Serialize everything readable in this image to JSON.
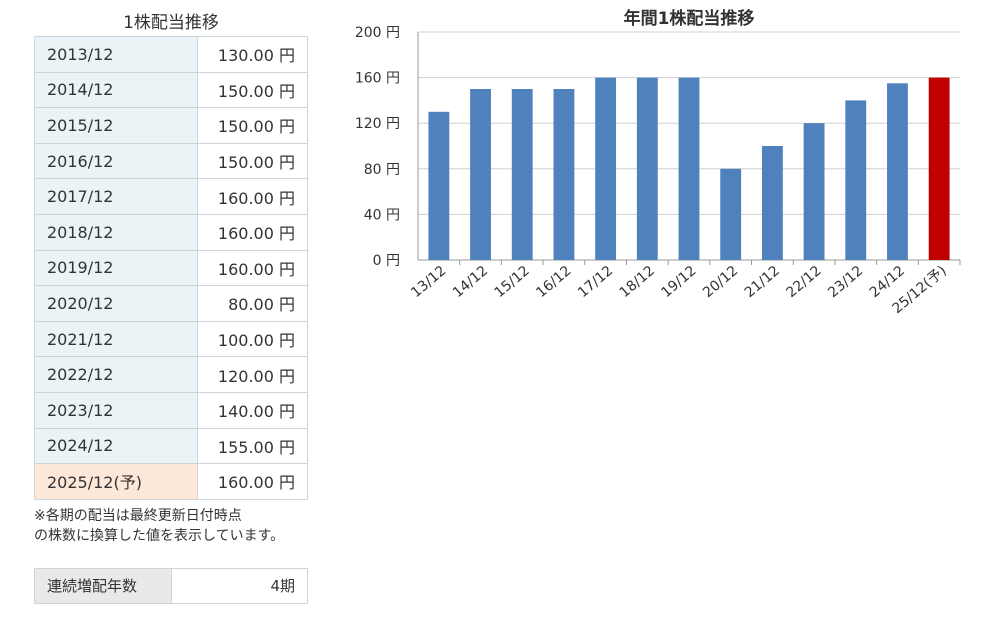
{
  "table": {
    "title": "1株配当推移",
    "rows": [
      {
        "year": "2013/12",
        "value": "130.00 円"
      },
      {
        "year": "2014/12",
        "value": "150.00 円"
      },
      {
        "year": "2015/12",
        "value": "150.00 円"
      },
      {
        "year": "2016/12",
        "value": "150.00 円"
      },
      {
        "year": "2017/12",
        "value": "160.00 円"
      },
      {
        "year": "2018/12",
        "value": "160.00 円"
      },
      {
        "year": "2019/12",
        "value": "160.00 円"
      },
      {
        "year": "2020/12",
        "value": "80.00 円"
      },
      {
        "year": "2021/12",
        "value": "100.00 円"
      },
      {
        "year": "2022/12",
        "value": "120.00 円"
      },
      {
        "year": "2023/12",
        "value": "140.00 円"
      },
      {
        "year": "2024/12",
        "value": "155.00 円"
      },
      {
        "year": "2025/12(予)",
        "value": "160.00 円"
      }
    ],
    "note_line1": "※各期の配当は最終更新日付時点",
    "note_line2": "の株数に換算した値を表示しています。"
  },
  "streak": {
    "label": "連続増配年数",
    "value": "4期"
  },
  "colors": {
    "bar": "#4f81bd",
    "forecast_bar": "#c00000",
    "grid": "#d0d0d0"
  },
  "chart_data": {
    "type": "bar",
    "title": "年間1株配当推移",
    "categories": [
      "13/12",
      "14/12",
      "15/12",
      "16/12",
      "17/12",
      "18/12",
      "19/12",
      "20/12",
      "21/12",
      "22/12",
      "23/12",
      "24/12",
      "25/12(予)"
    ],
    "values": [
      130,
      150,
      150,
      150,
      160,
      160,
      160,
      80,
      100,
      120,
      140,
      155,
      160
    ],
    "forecast_index": 12,
    "ylim": [
      0,
      200
    ],
    "yticks": [
      0,
      40,
      80,
      120,
      160,
      200
    ],
    "ytick_suffix": " 円",
    "grid": true
  }
}
